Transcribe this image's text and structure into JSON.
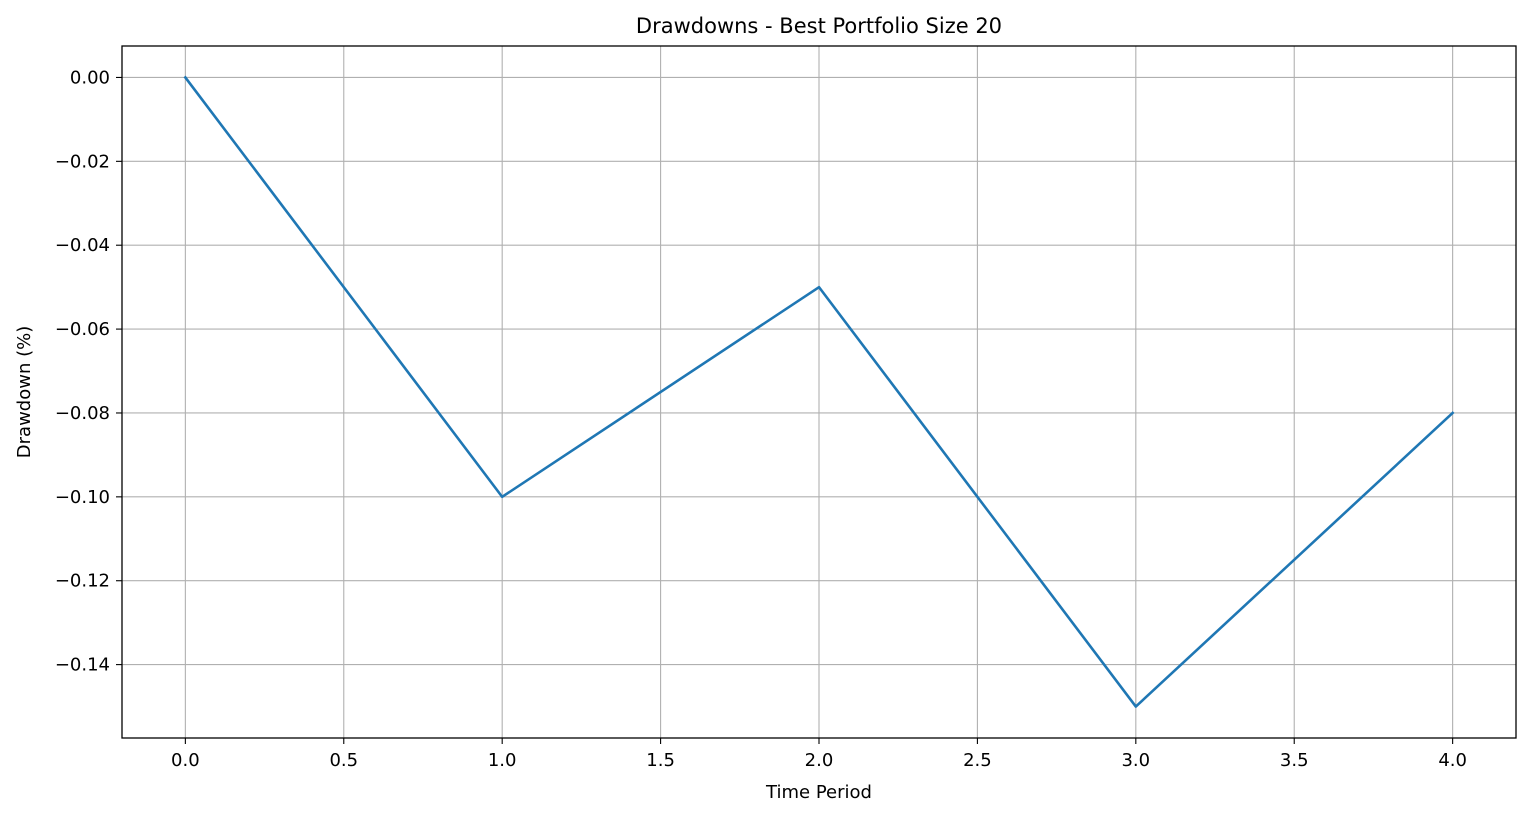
{
  "chart_data": {
    "type": "line",
    "title": "Drawdowns - Best Portfolio Size 20",
    "xlabel": "Time Period",
    "ylabel": "Drawdown (%)",
    "xlim": [
      -0.2,
      4.2
    ],
    "ylim": [
      -0.1575,
      0.0075
    ],
    "xticks": [
      0.0,
      0.5,
      1.0,
      1.5,
      2.0,
      2.5,
      3.0,
      3.5,
      4.0
    ],
    "xtick_labels": [
      "0.0",
      "0.5",
      "1.0",
      "1.5",
      "2.0",
      "2.5",
      "3.0",
      "3.5",
      "4.0"
    ],
    "yticks": [
      0.0,
      -0.02,
      -0.04,
      -0.06,
      -0.08,
      -0.1,
      -0.12,
      -0.14
    ],
    "ytick_labels": [
      "0.00",
      "−0.02",
      "−0.04",
      "−0.06",
      "−0.08",
      "−0.10",
      "−0.12",
      "−0.14"
    ],
    "grid": true,
    "legend": false,
    "series": [
      {
        "x": [
          0,
          1,
          2,
          3,
          4
        ],
        "values": [
          0.0,
          -0.1,
          -0.05,
          -0.15,
          -0.08
        ],
        "color": "#1f77b4"
      }
    ]
  }
}
